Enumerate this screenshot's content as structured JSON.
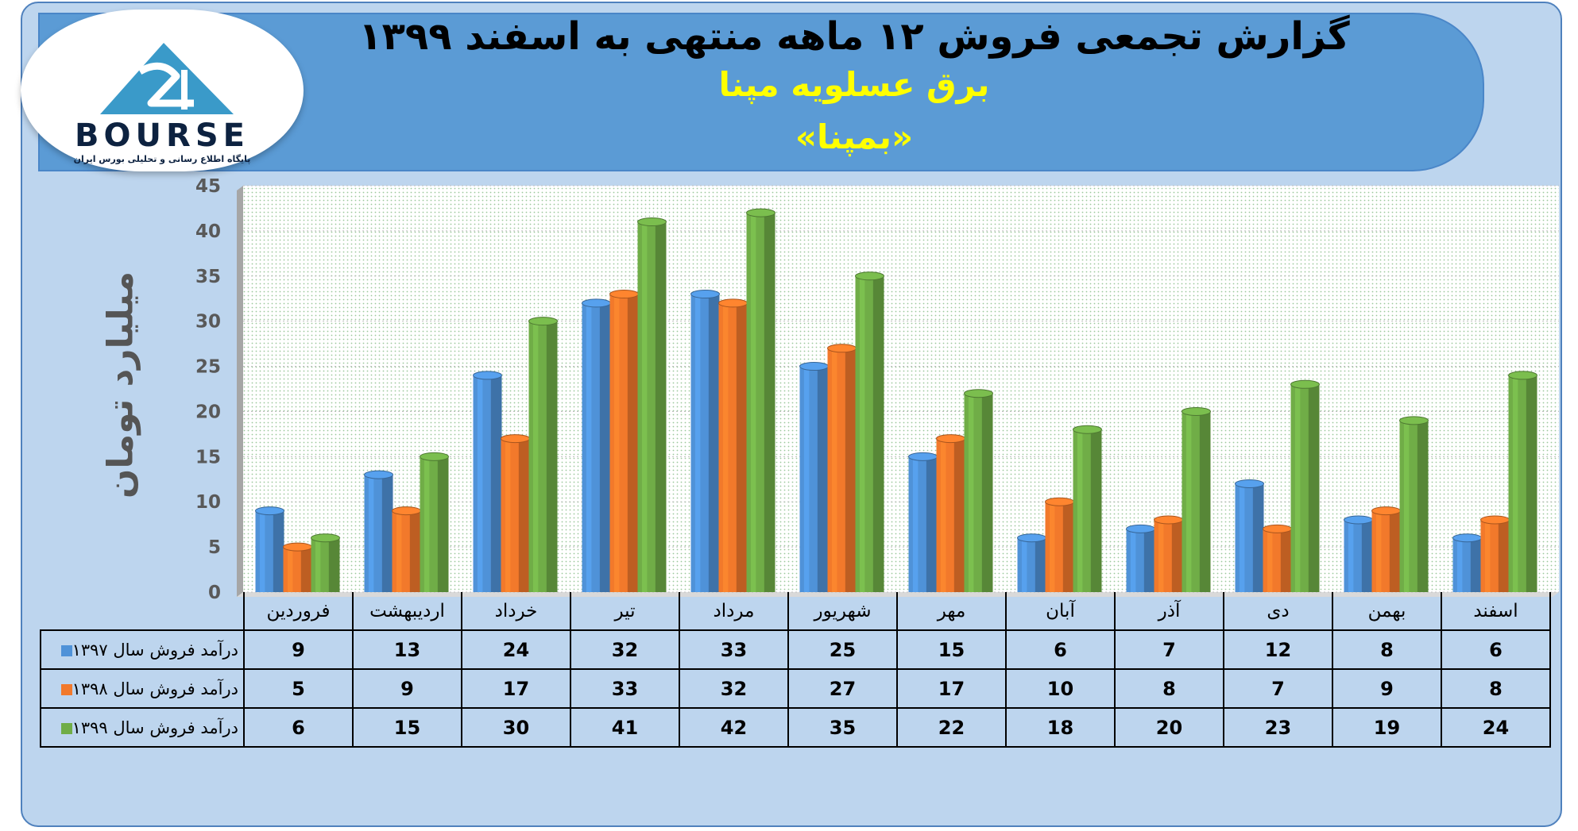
{
  "logo": {
    "text": "BOURSE",
    "tagline": "پایگاه اطلاع رسانی و تحلیلی بورس ایران",
    "colors": {
      "triangle": "#3a9ac9",
      "text": "#0d2240"
    }
  },
  "header": {
    "title": "گزارش تجمعی فروش ۱۲ ماهه منتهی به اسفند ۱۳۹۹",
    "company": "برق عسلویه مپنا",
    "ticker": "«بمپنا»"
  },
  "colors": {
    "series_1397": "#4f92d8",
    "series_1398": "#f2792b",
    "series_1399": "#70ad47",
    "banner": "#5b9bd5",
    "frame": "#bdd5ee"
  },
  "chart_data": {
    "type": "bar",
    "title": "گزارش تجمعی فروش ۱۲ ماهه منتهی به اسفند ۱۳۹۹",
    "ylabel": "میلیارد تومان",
    "xlabel": "",
    "ylim": [
      0,
      45
    ],
    "yticks": [
      0,
      5,
      10,
      15,
      20,
      25,
      30,
      35,
      40,
      45
    ],
    "grid": true,
    "legend": "table-left",
    "categories": [
      "فروردین",
      "اردیبهشت",
      "خرداد",
      "تیر",
      "مرداد",
      "شهریور",
      "مهر",
      "آبان",
      "آذر",
      "دی",
      "بهمن",
      "اسفند"
    ],
    "series": [
      {
        "name": "درآمد فروش سال ۱۳۹۷",
        "values": [
          9,
          13,
          24,
          32,
          33,
          25,
          15,
          6,
          7,
          12,
          8,
          6
        ]
      },
      {
        "name": "درآمد فروش سال ۱۳۹۸",
        "values": [
          5,
          9,
          17,
          33,
          32,
          27,
          17,
          10,
          8,
          7,
          9,
          8
        ]
      },
      {
        "name": "درآمد فروش سال ۱۳۹۹",
        "values": [
          6,
          15,
          30,
          41,
          42,
          35,
          22,
          18,
          20,
          23,
          19,
          24
        ]
      }
    ]
  }
}
